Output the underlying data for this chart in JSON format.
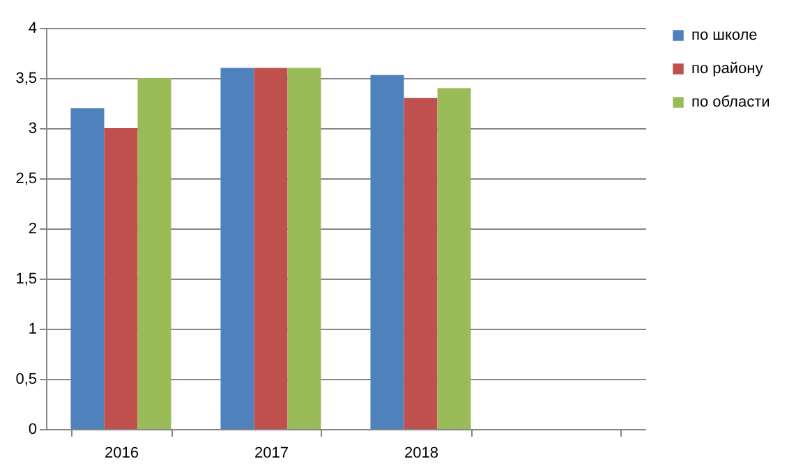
{
  "chart_data": {
    "type": "bar",
    "categories": [
      "2016",
      "2017",
      "2018",
      null
    ],
    "series": [
      {
        "name": "по школе",
        "color": "#4f81bd",
        "values": [
          3.2,
          3.6,
          3.53,
          null
        ]
      },
      {
        "name": "по району",
        "color": "#c0504d",
        "values": [
          3.0,
          3.6,
          3.3,
          null
        ]
      },
      {
        "name": "по области",
        "color": "#9bbb59",
        "values": [
          3.5,
          3.6,
          3.4,
          null
        ]
      }
    ],
    "ylim": [
      0,
      4
    ],
    "yticks": [
      0,
      {
        "value": 0.5,
        "label": "0,5"
      },
      1,
      {
        "value": 1.5,
        "label": "1,5"
      },
      2,
      {
        "value": 2.5,
        "label": "2,5"
      },
      3,
      {
        "value": 3.5,
        "label": "3,5"
      },
      4
    ],
    "grid": "y",
    "legend": "right"
  }
}
